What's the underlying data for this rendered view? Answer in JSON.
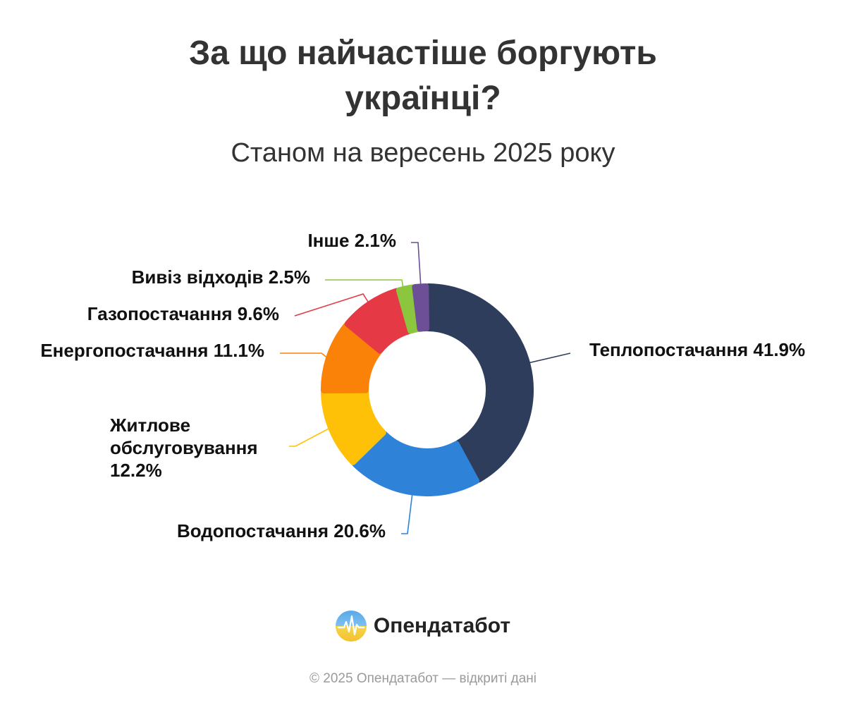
{
  "header": {
    "title_line1": "За що найчастіше боргують",
    "title_line2": "українці?",
    "subtitle": "Станом на вересень 2025 року"
  },
  "chart_data": {
    "type": "pie",
    "variant": "donut",
    "unit": "%",
    "slices": [
      {
        "label": "Теплопостачання",
        "value": 41.9,
        "display": "Теплопостачання 41.9%",
        "color": "#2e3d5c"
      },
      {
        "label": "Водопостачання",
        "value": 20.6,
        "display": "Водопостачання 20.6%",
        "color": "#2e83d9"
      },
      {
        "label": "Житлове обслуговування",
        "value": 12.2,
        "display_lines": [
          "Житлове",
          "обслуговування",
          "12.2%"
        ],
        "color": "#ffc107"
      },
      {
        "label": "Енергопостачання",
        "value": 11.1,
        "display": "Енергопостачання 11.1%",
        "color": "#fb8209"
      },
      {
        "label": "Газопостачання",
        "value": 9.6,
        "display": "Газопостачання 9.6%",
        "color": "#e63946"
      },
      {
        "label": "Вивіз відходів",
        "value": 2.5,
        "display": "Вивіз відходів 2.5%",
        "color": "#8cc63e"
      },
      {
        "label": "Інше",
        "value": 2.1,
        "display": "Інше 2.1%",
        "color": "#6c4f96"
      }
    ]
  },
  "brand": {
    "name": "Опендатабот",
    "logo_icon": "opendatabot-logo-icon"
  },
  "footer": {
    "text": "© 2025 Опендатабот — відкриті дані"
  }
}
